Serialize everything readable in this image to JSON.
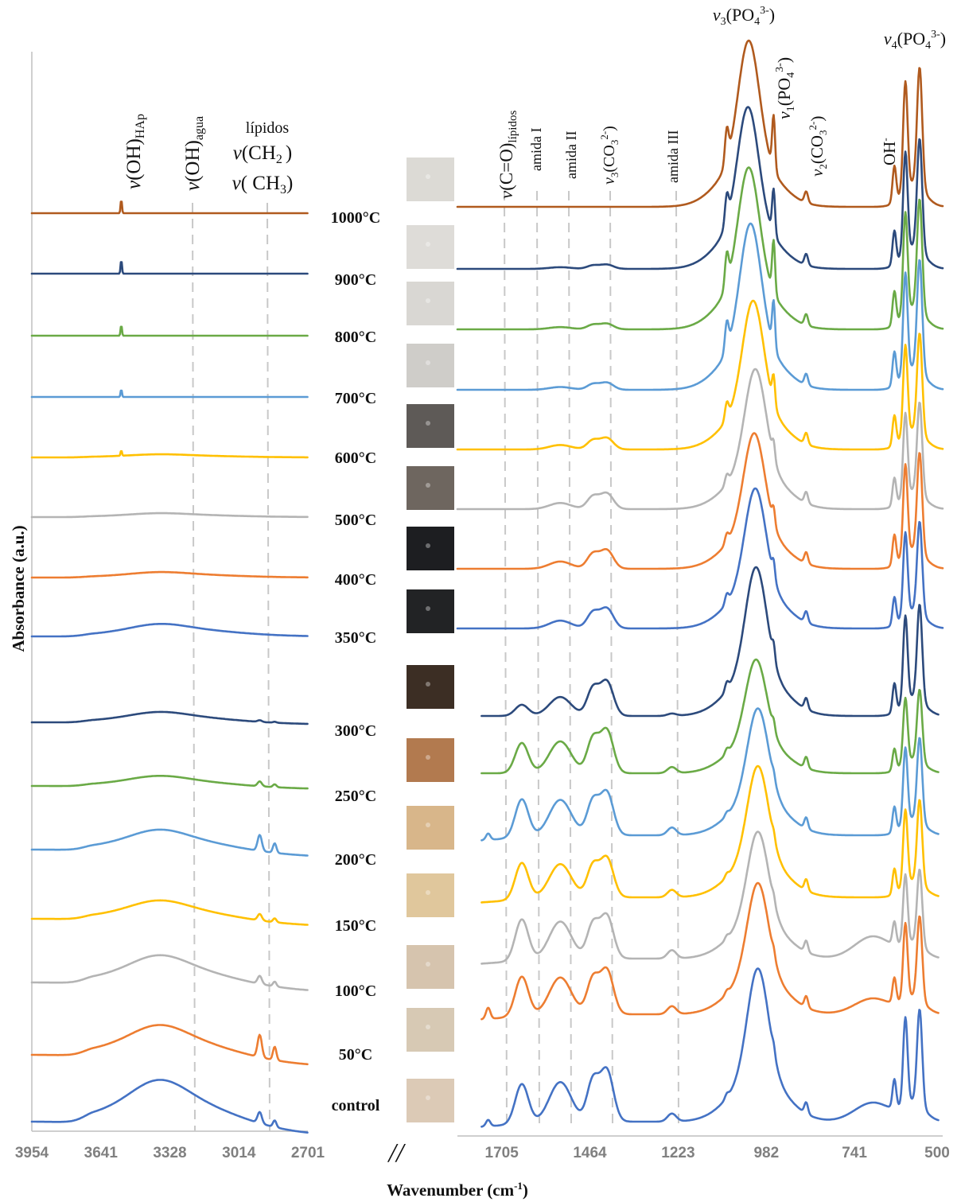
{
  "chart_data": [
    {
      "type": "line",
      "panel": "left",
      "xlabel": "Wavenumber (cm-1)",
      "ylabel": "Absorbance (a.u.)",
      "x_axis_reversed": true,
      "x_ticks": [
        "3954",
        "3641",
        "3328",
        "3014",
        "2701"
      ],
      "xlim": [
        3954,
        2701
      ],
      "annotations": [
        {
          "id": "oh_hap",
          "base": "v(OH)",
          "sub": "HAp",
          "x": 3640
        },
        {
          "id": "oh_agua",
          "base": "v(OH)",
          "sub": "agua",
          "x": 3320
        },
        {
          "id": "lipidos",
          "lines": [
            "lípidos",
            "v(CH2 )",
            "v( CH3)"
          ],
          "x": 2950
        }
      ],
      "series": [
        {
          "name": "1000°C",
          "color": "#b05a1e"
        },
        {
          "name": "900°C",
          "color": "#2c4a7c"
        },
        {
          "name": "800°C",
          "color": "#6aaa46"
        },
        {
          "name": "700°C",
          "color": "#5b9bd5"
        },
        {
          "name": "600°C",
          "color": "#ffc000"
        },
        {
          "name": "500°C",
          "color": "#b4b4b4"
        },
        {
          "name": "400°C",
          "color": "#ed7d31"
        },
        {
          "name": "350°C",
          "color": "#4472c4"
        },
        {
          "name": "300°C",
          "color": "#2c4a7c"
        },
        {
          "name": "250°C",
          "color": "#6aaa46"
        },
        {
          "name": "200°C",
          "color": "#5b9bd5"
        },
        {
          "name": "150°C",
          "color": "#ffc000"
        },
        {
          "name": "100°C",
          "color": "#b4b4b4"
        },
        {
          "name": "50°C",
          "color": "#ed7d31"
        },
        {
          "name": "control",
          "color": "#4472c4"
        }
      ]
    },
    {
      "type": "line",
      "panel": "right",
      "xlabel": "Wavenumber (cm-1)",
      "x_axis_reversed": true,
      "x_ticks": [
        "1705",
        "1464",
        "1223",
        "982",
        "741",
        "500"
      ],
      "xlim": [
        1826,
        500
      ],
      "annotations": [
        {
          "id": "co_lipidos",
          "text": "v(C=O)lípidos",
          "x": 1740
        },
        {
          "id": "amida1",
          "text": "amida I",
          "x": 1650
        },
        {
          "id": "amida2",
          "text": "amida II",
          "x": 1550
        },
        {
          "id": "co3_v3",
          "text": "v3(CO32-)",
          "x": 1430
        },
        {
          "id": "amida3",
          "text": "amida III",
          "x": 1245
        },
        {
          "id": "po4_v3",
          "text": "v3(PO43-)",
          "x": 1035
        },
        {
          "id": "po4_v1",
          "text": "v1(PO43-)",
          "x": 962
        },
        {
          "id": "co3_v2",
          "text": "v2(CO32-)",
          "x": 873
        },
        {
          "id": "oh",
          "text": "OH-",
          "x": 632
        },
        {
          "id": "po4_v4",
          "text": "v4(PO43-)",
          "x": 580
        }
      ],
      "series": [
        {
          "name": "1000°C",
          "color": "#b05a1e"
        },
        {
          "name": "900°C",
          "color": "#2c4a7c"
        },
        {
          "name": "800°C",
          "color": "#6aaa46"
        },
        {
          "name": "700°C",
          "color": "#5b9bd5"
        },
        {
          "name": "600°C",
          "color": "#ffc000"
        },
        {
          "name": "500°C",
          "color": "#b4b4b4"
        },
        {
          "name": "400°C",
          "color": "#ed7d31"
        },
        {
          "name": "350°C",
          "color": "#4472c4"
        },
        {
          "name": "300°C",
          "color": "#2c4a7c"
        },
        {
          "name": "250°C",
          "color": "#6aaa46"
        },
        {
          "name": "200°C",
          "color": "#5b9bd5"
        },
        {
          "name": "150°C",
          "color": "#ffc000"
        },
        {
          "name": "100°C",
          "color": "#b4b4b4"
        },
        {
          "name": "50°C",
          "color": "#ed7d31"
        },
        {
          "name": "control",
          "color": "#4472c4"
        }
      ]
    }
  ],
  "samples": [
    {
      "label": "1000°C",
      "swatch": "#dcdad5"
    },
    {
      "label": "900°C",
      "swatch": "#dedcd8"
    },
    {
      "label": "800°C",
      "swatch": "#d9d7d3"
    },
    {
      "label": "700°C",
      "swatch": "#cfcdc9"
    },
    {
      "label": "600°C",
      "swatch": "#5e5a57"
    },
    {
      "label": "500°C",
      "swatch": "#6e665f"
    },
    {
      "label": "400°C",
      "swatch": "#1d1e21"
    },
    {
      "label": "350°C",
      "swatch": "#222325"
    },
    {
      "label": "300°C",
      "swatch": "#3c2e24"
    },
    {
      "label": "250°C",
      "swatch": "#b27a4f"
    },
    {
      "label": "200°C",
      "swatch": "#d8b68a"
    },
    {
      "label": "150°C",
      "swatch": "#e0c79c"
    },
    {
      "label": "100°C",
      "swatch": "#d6c4ae"
    },
    {
      "label": "50°C",
      "swatch": "#d7c9b4"
    },
    {
      "label": "control",
      "swatch": "#dccab6"
    }
  ],
  "separator": "//"
}
